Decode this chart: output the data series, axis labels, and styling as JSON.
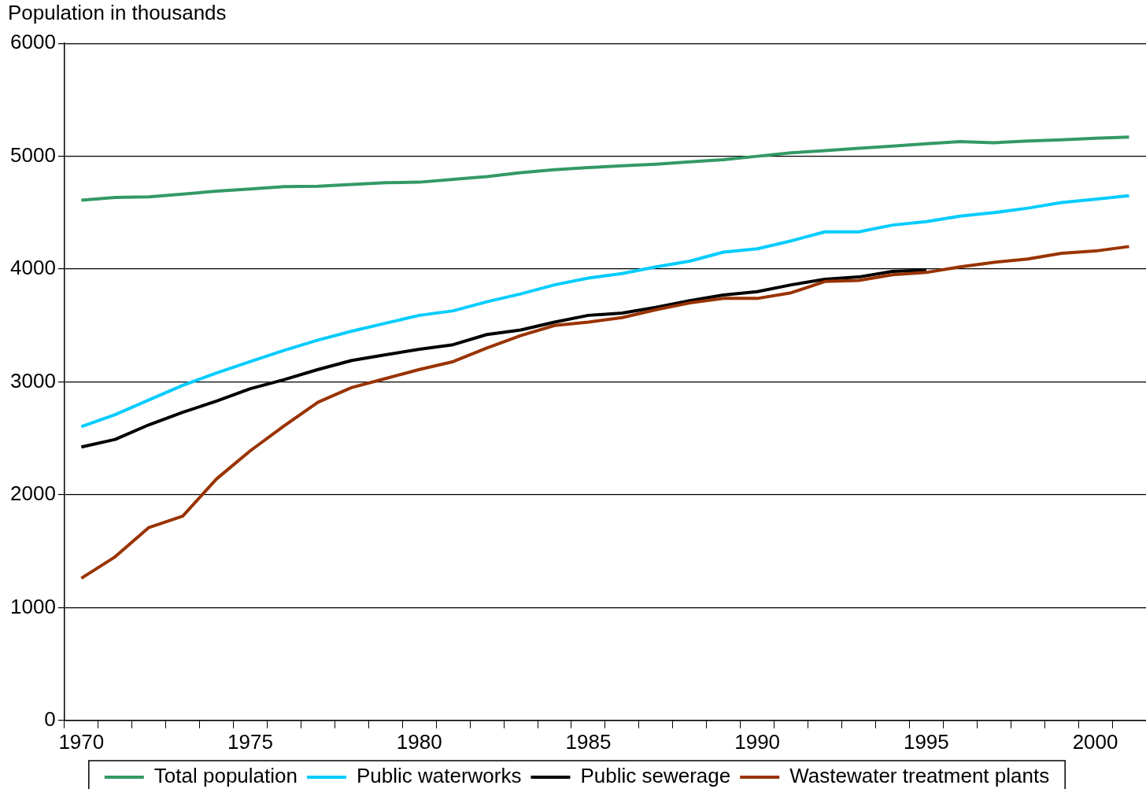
{
  "chart_data": {
    "type": "line",
    "ylabel": "Population in thousands",
    "categories": [
      "1970",
      null,
      null,
      null,
      null,
      "1975",
      null,
      null,
      null,
      null,
      "1980",
      null,
      null,
      null,
      null,
      "1985",
      null,
      null,
      null,
      null,
      "1990",
      null,
      null,
      null,
      null,
      "1995",
      null,
      null,
      null,
      null,
      "2000",
      null
    ],
    "ylim": [
      0,
      6000
    ],
    "yticks": [
      0,
      1000,
      2000,
      3000,
      4000,
      5000,
      6000
    ],
    "grid": "y",
    "legend": "bottom",
    "marker": "none",
    "line_style": "solid",
    "series": [
      {
        "name": "Total population",
        "color": "#339966",
        "values": [
          4610,
          4635,
          4640,
          4665,
          4690,
          4710,
          4730,
          4735,
          4750,
          4765,
          4770,
          4795,
          4820,
          4855,
          4880,
          4900,
          4915,
          4930,
          4950,
          4970,
          5000,
          5030,
          5050,
          5070,
          5090,
          5110,
          5130,
          5120,
          5135,
          5145,
          5160,
          5170
        ]
      },
      {
        "name": "Public waterworks",
        "color": "#00ccff",
        "values": [
          2604,
          2710,
          2840,
          2970,
          3080,
          3180,
          3280,
          3370,
          3450,
          3520,
          3590,
          3630,
          3710,
          3780,
          3860,
          3920,
          3960,
          4020,
          4070,
          4150,
          4180,
          4250,
          4330,
          4330,
          4390,
          4420,
          4470,
          4500,
          4540,
          4590,
          4620,
          4650
        ]
      },
      {
        "name": "Public sewerage",
        "color": "#000000",
        "values": [
          2423,
          2490,
          2620,
          2730,
          2830,
          2940,
          3020,
          3110,
          3190,
          3240,
          3290,
          3330,
          3420,
          3460,
          3530,
          3590,
          3610,
          3660,
          3720,
          3770,
          3800,
          3860,
          3910,
          3930,
          3980,
          3990,
          null,
          null,
          null,
          null,
          null,
          null
        ]
      },
      {
        "name": "Wastewater treatment plants",
        "color": "#993300",
        "values": [
          1260,
          1450,
          1710,
          1810,
          2140,
          2390,
          2610,
          2820,
          2950,
          3030,
          3110,
          3180,
          3300,
          3410,
          3500,
          3530,
          3570,
          3640,
          3700,
          3740,
          3740,
          3790,
          3890,
          3900,
          3950,
          3970,
          4020,
          4060,
          4090,
          4140,
          4160,
          4200
        ]
      }
    ]
  }
}
